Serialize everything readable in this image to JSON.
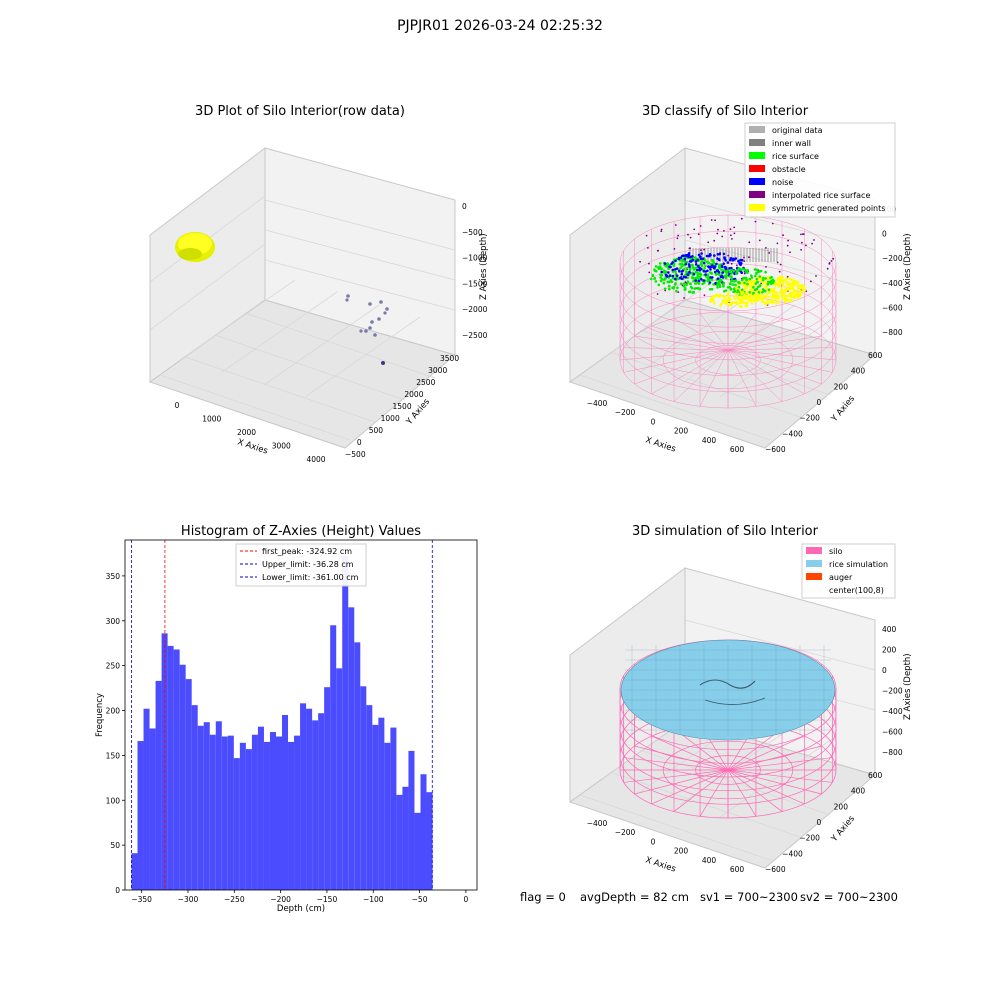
{
  "suptitle": "PJPJR01 2026-03-24 02:25:32",
  "colors": {
    "yellow": "#ffff00",
    "hist": "#4c4cff",
    "peak": "#ff0000",
    "limit": "#0000cc",
    "silo": "#ff69b4",
    "rice": "#87ceeb",
    "auger": "#ff4500"
  },
  "chart_data": [
    {
      "type": "scatter3d",
      "title": "3D Plot of Silo Interior(row data)",
      "xlabel": "X Axies",
      "ylabel": "Y Axies",
      "zlabel": "Z Axies (Depth)",
      "xticks": [
        "0",
        "1000",
        "2000",
        "3000",
        "4000"
      ],
      "yticks": [
        "−500",
        "0",
        "500",
        "1000",
        "1500",
        "2000",
        "2500",
        "3000",
        "3500"
      ],
      "zticks": [
        "0",
        "−500",
        "−1000",
        "−1500",
        "−2000",
        "−2500"
      ],
      "xlim": [
        -500,
        4000
      ],
      "ylim": [
        -500,
        3700
      ],
      "zlim": [
        -2700,
        0
      ],
      "grid": true
    },
    {
      "type": "scatter3d",
      "title": "3D classify of Silo Interior",
      "xlabel": "X Axies",
      "ylabel": "Y Axies",
      "zlabel": "Z Axies (Depth)",
      "xticks": [
        "−400",
        "−200",
        "0",
        "200",
        "400",
        "600"
      ],
      "yticks": [
        "−600",
        "−400",
        "−200",
        "0",
        "200",
        "400",
        "600"
      ],
      "zticks": [
        "200",
        "0",
        "−200",
        "−400",
        "−600",
        "−800"
      ],
      "grid": true,
      "legend_position": "top-right",
      "legend": [
        {
          "label": "original data",
          "color": "#b0b0b0"
        },
        {
          "label": "inner wall",
          "color": "#808080"
        },
        {
          "label": "rice surface",
          "color": "#00ff00"
        },
        {
          "label": "obstacle",
          "color": "#ff0000"
        },
        {
          "label": "noise",
          "color": "#0000ff"
        },
        {
          "label": "interpolated rice surface",
          "color": "#800080"
        },
        {
          "label": "symmetric generated points",
          "color": "#ffff00"
        }
      ]
    },
    {
      "type": "bar",
      "title": "Histogram of Z-Axies (Height) Values",
      "xlabel": "Depth (cm)",
      "ylabel": "Frequency",
      "xlim": [
        -368,
        12
      ],
      "ylim": [
        0,
        390
      ],
      "xticks": [
        -350,
        -300,
        -250,
        -200,
        -150,
        -100,
        -50,
        0
      ],
      "yticks": [
        0,
        50,
        100,
        150,
        200,
        250,
        300,
        350
      ],
      "bin_start": -361,
      "bin_width": 6.5,
      "values": [
        41,
        166,
        202,
        180,
        233,
        286,
        272,
        268,
        251,
        235,
        206,
        183,
        187,
        173,
        188,
        171,
        172,
        147,
        164,
        157,
        173,
        182,
        165,
        176,
        171,
        195,
        165,
        172,
        208,
        202,
        189,
        197,
        226,
        295,
        247,
        372,
        315,
        276,
        227,
        206,
        184,
        192,
        164,
        181,
        106,
        115,
        155,
        86,
        129,
        109
      ],
      "vlines": [
        {
          "x": -324.92,
          "color": "#ff0000",
          "label": "first_peak: -324.92 cm"
        },
        {
          "x": -36.28,
          "color": "#0000cc",
          "label": "Upper_limit: -36.28 cm"
        },
        {
          "x": -361.0,
          "color": "#0000cc",
          "label": "Lower_limit: -361.00 cm"
        }
      ],
      "legend_position": "top-center"
    },
    {
      "type": "surface3d",
      "title": "3D simulation of Silo Interior",
      "xlabel": "X Axies",
      "ylabel": "Y Axies",
      "zlabel": "Z Axies (Depth)",
      "xticks": [
        "−400",
        "−200",
        "0",
        "200",
        "400",
        "600"
      ],
      "yticks": [
        "−600",
        "−400",
        "−200",
        "0",
        "200",
        "400",
        "600"
      ],
      "zticks": [
        "400",
        "200",
        "0",
        "−200",
        "−400",
        "−600",
        "−800"
      ],
      "grid": true,
      "legend_position": "top-right",
      "legend": [
        {
          "label": "silo",
          "color": "#ff69b4"
        },
        {
          "label": "rice simulation",
          "color": "#87ceeb"
        },
        {
          "label": "auger",
          "color": "#ff4500"
        },
        {
          "label": "center(100,8)",
          "color": ""
        }
      ]
    }
  ],
  "status": {
    "flag": "flag = 0",
    "avg_depth": "avgDepth = 82 cm",
    "sv1": "sv1 = 700~2300",
    "sv2": "sv2 = 700~2300"
  }
}
